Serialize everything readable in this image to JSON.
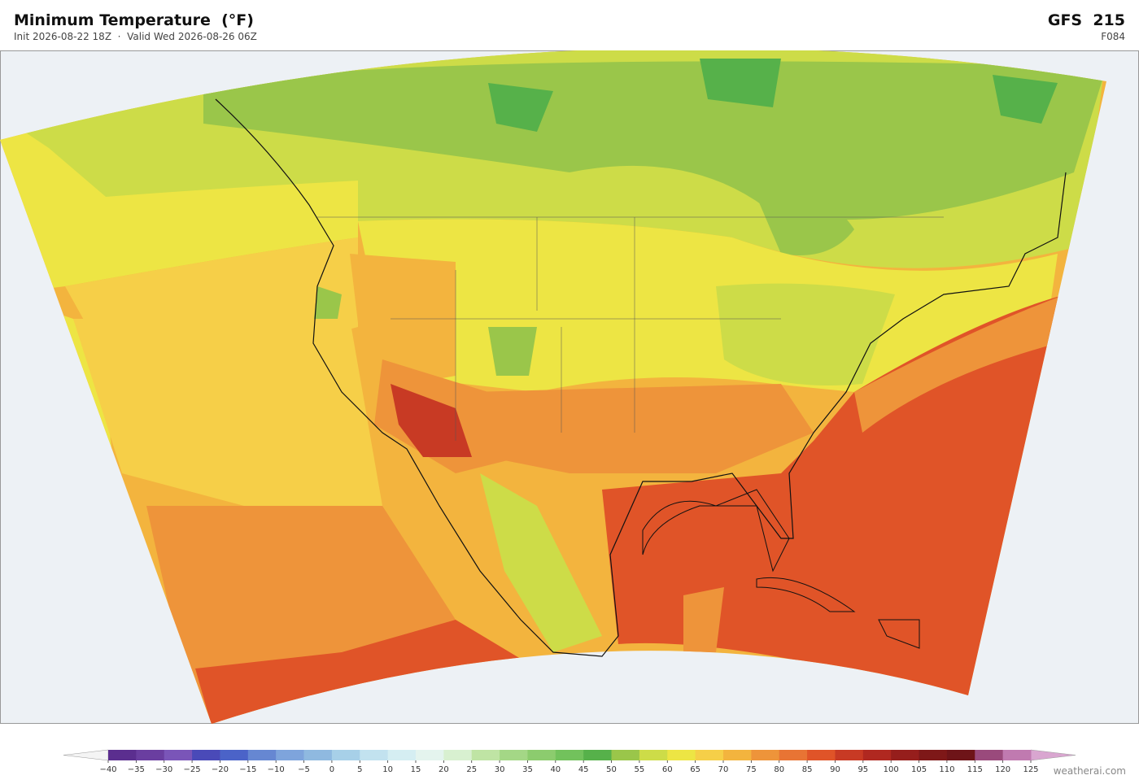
{
  "header": {
    "title": "Minimum Temperature  (°F)",
    "subtitle": "Init 2026-08-22 18Z  ·  Valid Wed 2026-08-26 06Z",
    "model": "GFS  215",
    "step": "F084"
  },
  "colorbar": {
    "ticks": [
      {
        "value": -40,
        "label": "−40"
      },
      {
        "value": -35,
        "label": "−35"
      },
      {
        "value": -30,
        "label": "−30"
      },
      {
        "value": -25,
        "label": "−25"
      },
      {
        "value": -20,
        "label": "−20"
      },
      {
        "value": -15,
        "label": "−15"
      },
      {
        "value": -10,
        "label": "−10"
      },
      {
        "value": -5,
        "label": "−5"
      },
      0,
      5,
      10,
      15,
      20,
      25,
      30,
      35,
      40,
      45,
      50,
      55,
      60,
      65,
      70,
      75,
      80,
      85,
      90,
      95,
      100,
      105,
      110,
      115,
      120,
      125
    ],
    "colors": [
      "#5b2e8f",
      "#6a3ea0",
      "#7a55b8",
      "#4a4ab8",
      "#4b63c8",
      "#6687d2",
      "#7ea4dc",
      "#8fb9e0",
      "#a7d0e8",
      "#c2e2ef",
      "#d5eef2",
      "#e4f4ee",
      "#d8f0d0",
      "#bfe4a4",
      "#a4d786",
      "#8ccc6e",
      "#72c25c",
      "#56b14a",
      "#9ac64a",
      "#cddc48",
      "#ede544",
      "#f6cf48",
      "#f3b43e",
      "#ee943a",
      "#e87434",
      "#e05428",
      "#c83a24",
      "#b02820",
      "#961e1c",
      "#7e1818",
      "#6e1418",
      "#9a4a7c",
      "#c07ab0"
    ],
    "under_color": "#f4f4f4",
    "over_color": "#d9a6d0"
  },
  "credit": "weatherai.com"
}
